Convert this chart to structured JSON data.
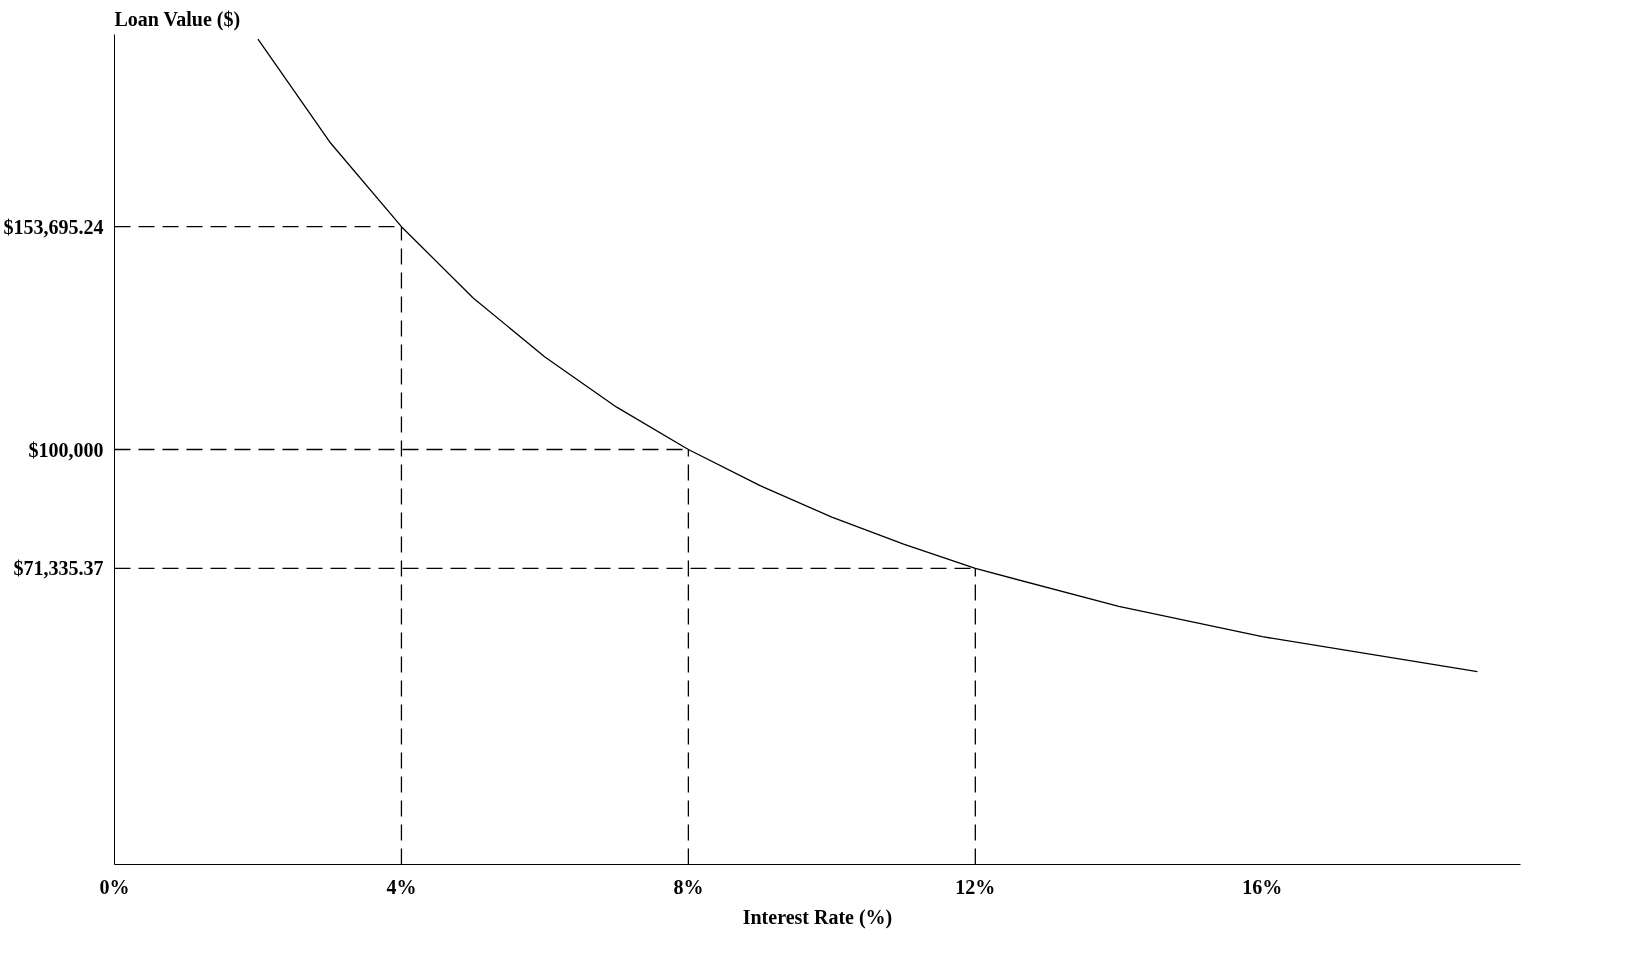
{
  "chart_data": {
    "type": "line",
    "xlabel": "Interest Rate (%)",
    "ylabel": "Loan Value ($)",
    "x": [
      2,
      3,
      4,
      5,
      6,
      7,
      8,
      9,
      10,
      11,
      12,
      14,
      16,
      19
    ],
    "series": [
      {
        "color": "#000000",
        "values": [
          198900,
          174100,
          153695.24,
          136500,
          122300,
          110200,
          100000,
          91300,
          83700,
          77200,
          71335.37,
          62200,
          54900,
          46500
        ]
      }
    ],
    "xlim": [
      0,
      19.6
    ],
    "ylim": [
      0,
      200000
    ],
    "xticks": [
      {
        "value": 0,
        "label": "0%"
      },
      {
        "value": 4,
        "label": "4%"
      },
      {
        "value": 8,
        "label": "8%"
      },
      {
        "value": 12,
        "label": "12%"
      },
      {
        "value": 16,
        "label": "16%"
      }
    ],
    "yticks": [
      {
        "value": 71335.37,
        "label": "$71,335.37"
      },
      {
        "value": 100000,
        "label": "$100,000"
      },
      {
        "value": 153695.24,
        "label": "$153,695.24"
      }
    ],
    "ref_lines": [
      {
        "axis": "y",
        "value": 153695.24,
        "line_style": "dashed"
      },
      {
        "axis": "y",
        "value": 100000,
        "line_style": "dashed"
      },
      {
        "axis": "y",
        "value": 71335.37,
        "line_style": "dashed"
      },
      {
        "axis": "x",
        "value": 4,
        "line_style": "dashed"
      },
      {
        "axis": "x",
        "value": 8,
        "line_style": "dashed"
      },
      {
        "axis": "x",
        "value": 12,
        "line_style": "dashed"
      }
    ],
    "grid": false,
    "marker": "none",
    "line_style": "solid"
  }
}
